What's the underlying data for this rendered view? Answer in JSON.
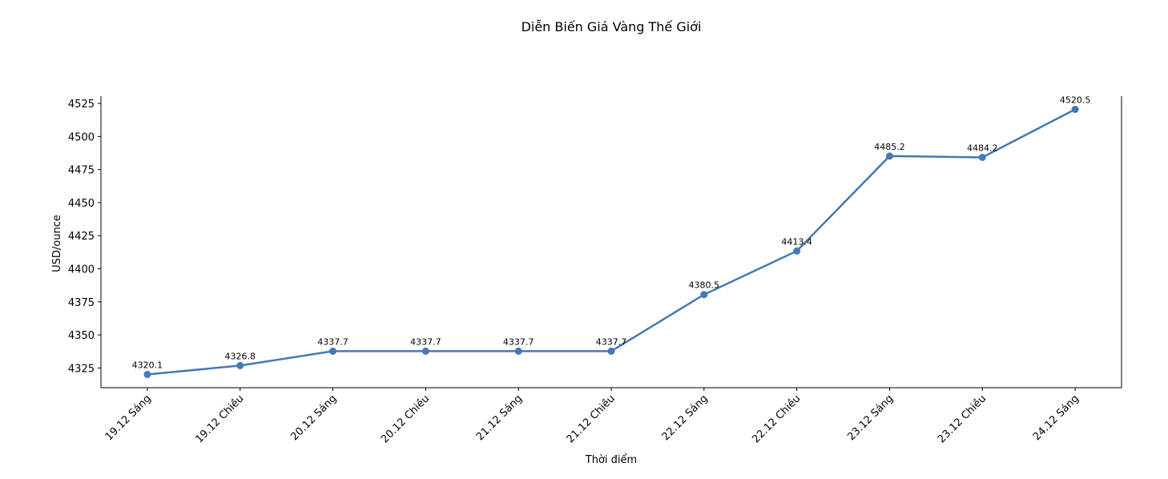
{
  "chart_data": {
    "type": "line",
    "title": "Diễn Biến Giá Vàng Thế Giới",
    "xlabel": "Thời điểm",
    "ylabel": "USD/ounce",
    "categories": [
      "19.12 Sáng",
      "19.12 Chiều",
      "20.12 Sáng",
      "20.12 Chiều",
      "21.12 Sáng",
      "21.12 Chiều",
      "22.12 Sáng",
      "22.12 Chiều",
      "23.12 Sáng",
      "23.12 Chiều",
      "24.12 Sáng"
    ],
    "values": [
      4320.1,
      4326.8,
      4337.7,
      4337.7,
      4337.7,
      4337.7,
      4380.5,
      4413.4,
      4485.2,
      4484.2,
      4520.5
    ],
    "data_labels": [
      "4320.1",
      "4326.8",
      "4337.7",
      "4337.7",
      "4337.7",
      "4337.7",
      "4380.5",
      "4413.4",
      "4485.2",
      "4484.2",
      "4520.5"
    ],
    "yticks": [
      4325,
      4350,
      4375,
      4400,
      4425,
      4450,
      4475,
      4500,
      4525
    ],
    "ylim": [
      4310.1,
      4530.5
    ],
    "grid": false,
    "marker": "circle",
    "color": "#4479b3"
  }
}
